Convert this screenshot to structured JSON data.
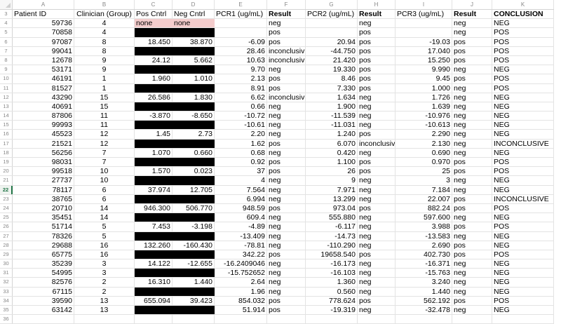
{
  "sheet": {
    "columns": [
      "A",
      "B",
      "C",
      "D",
      "E",
      "F",
      "G",
      "H",
      "I",
      "J",
      "K"
    ],
    "active_row": 22,
    "header_row": {
      "row_number": "3",
      "cells": [
        "Patient ID",
        "Clinician (Group)",
        "Pos Cntrl",
        "Neg Cntrl",
        "PCR1 (ug/mL)",
        "Result",
        "PCR2 (ug/mL)",
        "Result",
        "PCR3 (ug/mL)",
        "Result",
        "CONCLUSION"
      ]
    },
    "rows": [
      {
        "n": "4",
        "id": "59736",
        "grp": "4",
        "pos": "none",
        "neg": "none",
        "ctrl": "pink",
        "p1": "",
        "r1": "neg",
        "p2": "",
        "r2": "neg",
        "p3": "",
        "r3": "neg",
        "conc": "NEG"
      },
      {
        "n": "5",
        "id": "70858",
        "grp": "4",
        "pos": "",
        "neg": "",
        "ctrl": "black",
        "p1": "",
        "r1": "pos",
        "p2": "",
        "r2": "pos",
        "p3": "",
        "r3": "neg",
        "conc": "POS"
      },
      {
        "n": "6",
        "id": "97087",
        "grp": "8",
        "pos": "18.450",
        "neg": "38.870",
        "ctrl": "",
        "p1": "-6.09",
        "r1": "pos",
        "p2": "20.94",
        "r2": "pos",
        "p3": "-19.03",
        "r3": "pos",
        "conc": "POS"
      },
      {
        "n": "7",
        "id": "99041",
        "grp": "8",
        "pos": "",
        "neg": "",
        "ctrl": "black",
        "p1": "28.46",
        "r1": "inconclusiv",
        "p2": "-44.750",
        "r2": "pos",
        "p3": "17.040",
        "r3": "pos",
        "conc": "POS"
      },
      {
        "n": "8",
        "id": "12678",
        "grp": "9",
        "pos": "24.12",
        "neg": "5.662",
        "ctrl": "",
        "p1": "10.63",
        "r1": "inconclusiv",
        "p2": "21.420",
        "r2": "pos",
        "p3": "15.250",
        "r3": "pos",
        "conc": "POS"
      },
      {
        "n": "9",
        "id": "53171",
        "grp": "9",
        "pos": "",
        "neg": "",
        "ctrl": "black",
        "p1": "9.70",
        "r1": "neg",
        "p2": "19.330",
        "r2": "pos",
        "p3": "9.990",
        "r3": "neg",
        "conc": "NEG"
      },
      {
        "n": "10",
        "id": "46191",
        "grp": "1",
        "pos": "1.960",
        "neg": "1.010",
        "ctrl": "",
        "p1": "2.13",
        "r1": "pos",
        "p2": "8.46",
        "r2": "pos",
        "p3": "9.45",
        "r3": "pos",
        "conc": "POS"
      },
      {
        "n": "11",
        "id": "81527",
        "grp": "1",
        "pos": "",
        "neg": "",
        "ctrl": "black",
        "p1": "8.91",
        "r1": "pos",
        "p2": "7.330",
        "r2": "pos",
        "p3": "1.000",
        "r3": "neg",
        "conc": "POS"
      },
      {
        "n": "12",
        "id": "43290",
        "grp": "15",
        "pos": "26.586",
        "neg": "1.830",
        "ctrl": "",
        "p1": "6.62",
        "r1": "inconclusiv",
        "p2": "1.634",
        "r2": "neg",
        "p3": "1.726",
        "r3": "neg",
        "conc": "NEG"
      },
      {
        "n": "13",
        "id": "40691",
        "grp": "15",
        "pos": "",
        "neg": "",
        "ctrl": "black",
        "p1": "0.66",
        "r1": "neg",
        "p2": "1.900",
        "r2": "neg",
        "p3": "1.639",
        "r3": "neg",
        "conc": "NEG"
      },
      {
        "n": "14",
        "id": "87806",
        "grp": "11",
        "pos": "-3.870",
        "neg": "-8.650",
        "ctrl": "",
        "p1": "-10.72",
        "r1": "neg",
        "p2": "-11.539",
        "r2": "neg",
        "p3": "-10.976",
        "r3": "neg",
        "conc": "NEG"
      },
      {
        "n": "15",
        "id": "99993",
        "grp": "11",
        "pos": "",
        "neg": "",
        "ctrl": "black",
        "p1": "-10.61",
        "r1": "neg",
        "p2": "-11.031",
        "r2": "neg",
        "p3": "-10.613",
        "r3": "neg",
        "conc": "NEG"
      },
      {
        "n": "16",
        "id": "45523",
        "grp": "12",
        "pos": "1.45",
        "neg": "2.73",
        "ctrl": "",
        "p1": "2.20",
        "r1": "neg",
        "p2": "1.240",
        "r2": "pos",
        "p3": "2.290",
        "r3": "neg",
        "conc": "NEG"
      },
      {
        "n": "17",
        "id": "21521",
        "grp": "12",
        "pos": "",
        "neg": "",
        "ctrl": "black",
        "p1": "1.62",
        "r1": "pos",
        "p2": "6.070",
        "r2": "inconclusiv",
        "p3": "2.130",
        "r3": "neg",
        "conc": "INCONCLUSIVE"
      },
      {
        "n": "18",
        "id": "56256",
        "grp": "7",
        "pos": "1.070",
        "neg": "0.660",
        "ctrl": "",
        "p1": "0.68",
        "r1": "neg",
        "p2": "0.420",
        "r2": "neg",
        "p3": "0.690",
        "r3": "neg",
        "conc": "NEG"
      },
      {
        "n": "19",
        "id": "98031",
        "grp": "7",
        "pos": "",
        "neg": "",
        "ctrl": "black",
        "p1": "0.92",
        "r1": "pos",
        "p2": "1.100",
        "r2": "pos",
        "p3": "0.970",
        "r3": "pos",
        "conc": "POS"
      },
      {
        "n": "20",
        "id": "99518",
        "grp": "10",
        "pos": "1.570",
        "neg": "0.023",
        "ctrl": "",
        "p1": "37",
        "r1": "pos",
        "p2": "26",
        "r2": "pos",
        "p3": "25",
        "r3": "pos",
        "conc": "POS"
      },
      {
        "n": "21",
        "id": "27737",
        "grp": "10",
        "pos": "",
        "neg": "",
        "ctrl": "black",
        "p1": "4",
        "r1": "neg",
        "p2": "9",
        "r2": "neg",
        "p3": "3",
        "r3": "neg",
        "conc": "NEG"
      },
      {
        "n": "22",
        "id": "78117",
        "grp": "6",
        "pos": "37.974",
        "neg": "12.705",
        "ctrl": "",
        "p1": "7.564",
        "r1": "neg",
        "p2": "7.971",
        "r2": "neg",
        "p3": "7.184",
        "r3": "neg",
        "conc": "NEG"
      },
      {
        "n": "23",
        "id": "38765",
        "grp": "6",
        "pos": "",
        "neg": "",
        "ctrl": "black",
        "p1": "6.994",
        "r1": "neg",
        "p2": "13.299",
        "r2": "neg",
        "p3": "22.007",
        "r3": "pos",
        "conc": "INCONCLUSIVE"
      },
      {
        "n": "24",
        "id": "20710",
        "grp": "14",
        "pos": "946.300",
        "neg": "506.770",
        "ctrl": "",
        "p1": "948.59",
        "r1": "pos",
        "p2": "973.04",
        "r2": "pos",
        "p3": "882.24",
        "r3": "pos",
        "conc": "POS"
      },
      {
        "n": "25",
        "id": "35451",
        "grp": "14",
        "pos": "",
        "neg": "",
        "ctrl": "black",
        "p1": "609.4",
        "r1": "neg",
        "p2": "555.880",
        "r2": "neg",
        "p3": "597.600",
        "r3": "neg",
        "conc": "NEG"
      },
      {
        "n": "26",
        "id": "51714",
        "grp": "5",
        "pos": "7.453",
        "neg": "-3.198",
        "ctrl": "",
        "p1": "-4.89",
        "r1": "neg",
        "p2": "-6.117",
        "r2": "neg",
        "p3": "3.988",
        "r3": "pos",
        "conc": "POS"
      },
      {
        "n": "27",
        "id": "78326",
        "grp": "5",
        "pos": "",
        "neg": "",
        "ctrl": "black",
        "p1": "-13.409",
        "r1": "neg",
        "p2": "-14.73",
        "r2": "neg",
        "p3": "-13.583",
        "r3": "neg",
        "conc": "NEG"
      },
      {
        "n": "28",
        "id": "29688",
        "grp": "16",
        "pos": "132.260",
        "neg": "-160.430",
        "ctrl": "",
        "p1": "-78.81",
        "r1": "neg",
        "p2": "-110.290",
        "r2": "neg",
        "p3": "2.690",
        "r3": "pos",
        "conc": "NEG"
      },
      {
        "n": "29",
        "id": "65775",
        "grp": "16",
        "pos": "",
        "neg": "",
        "ctrl": "black",
        "p1": "342.22",
        "r1": "pos",
        "p2": "19658.540",
        "r2": "pos",
        "p3": "402.730",
        "r3": "pos",
        "conc": "POS"
      },
      {
        "n": "30",
        "id": "35239",
        "grp": "3",
        "pos": "14.122",
        "neg": "-12.655",
        "ctrl": "",
        "p1": "-16.2409046",
        "r1": "neg",
        "p2": "-16.173",
        "r2": "neg",
        "p3": "-16.371",
        "r3": "neg",
        "conc": "NEG"
      },
      {
        "n": "31",
        "id": "54995",
        "grp": "3",
        "pos": "",
        "neg": "",
        "ctrl": "black",
        "p1": "-15.752652",
        "r1": "neg",
        "p2": "-16.103",
        "r2": "neg",
        "p3": "-15.763",
        "r3": "neg",
        "conc": "NEG"
      },
      {
        "n": "32",
        "id": "82576",
        "grp": "2",
        "pos": "16.310",
        "neg": "1.440",
        "ctrl": "",
        "p1": "2.64",
        "r1": "neg",
        "p2": "1.360",
        "r2": "neg",
        "p3": "3.240",
        "r3": "neg",
        "conc": "NEG"
      },
      {
        "n": "33",
        "id": "67115",
        "grp": "2",
        "pos": "",
        "neg": "",
        "ctrl": "black",
        "p1": "1.96",
        "r1": "neg",
        "p2": "0.560",
        "r2": "neg",
        "p3": "1.440",
        "r3": "neg",
        "conc": "NEG"
      },
      {
        "n": "34",
        "id": "39590",
        "grp": "13",
        "pos": "655.094",
        "neg": "39.423",
        "ctrl": "",
        "p1": "854.032",
        "r1": "pos",
        "p2": "778.624",
        "r2": "pos",
        "p3": "562.192",
        "r3": "pos",
        "conc": "POS"
      },
      {
        "n": "35",
        "id": "63142",
        "grp": "13",
        "pos": "",
        "neg": "",
        "ctrl": "black",
        "p1": "51.914",
        "r1": "pos",
        "p2": "-19.319",
        "r2": "neg",
        "p3": "-32.478",
        "r3": "neg",
        "conc": "NEG"
      }
    ],
    "trailing_row": "36",
    "colors": {
      "pink_fill": "#f4cccc",
      "redacted_fill": "#000000",
      "active_accent": "#217346"
    }
  }
}
